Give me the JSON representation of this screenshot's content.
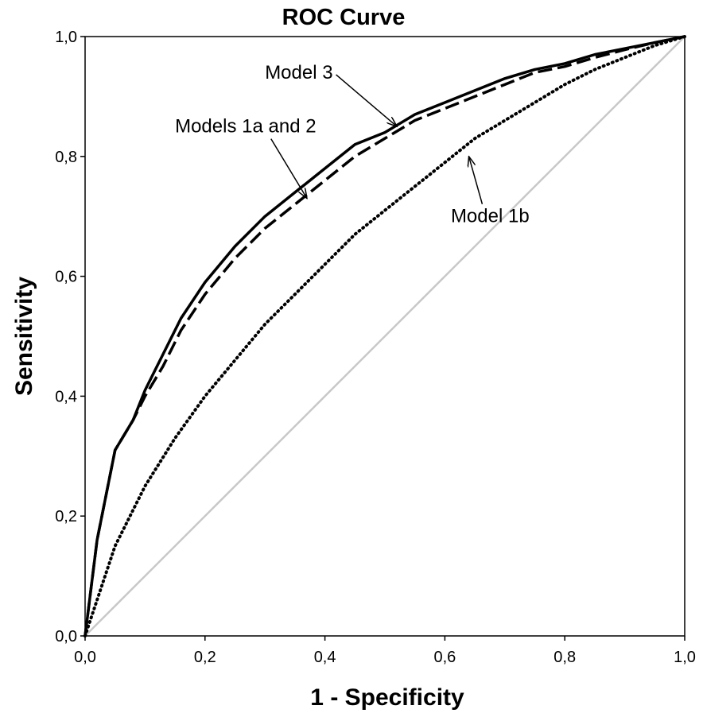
{
  "chart_data": {
    "type": "line",
    "title": "ROC Curve",
    "xlabel": "1 - Specificity",
    "ylabel": "Sensitivity",
    "xlim": [
      0,
      1
    ],
    "ylim": [
      0,
      1
    ],
    "grid": false,
    "x_ticks": [
      "0,0",
      "0,2",
      "0,4",
      "0,6",
      "0,8",
      "1,0"
    ],
    "y_ticks": [
      "0,0",
      "0,2",
      "0,4",
      "0,6",
      "0,8",
      "1,0"
    ],
    "series": [
      {
        "name": "Model 3",
        "style": "solid",
        "color": "#000000",
        "x": [
          0,
          0.02,
          0.05,
          0.08,
          0.1,
          0.13,
          0.16,
          0.2,
          0.25,
          0.3,
          0.35,
          0.4,
          0.45,
          0.5,
          0.55,
          0.6,
          0.65,
          0.7,
          0.75,
          0.8,
          0.85,
          0.9,
          0.95,
          1.0
        ],
        "y": [
          0,
          0.16,
          0.31,
          0.36,
          0.41,
          0.47,
          0.53,
          0.59,
          0.65,
          0.7,
          0.74,
          0.78,
          0.82,
          0.84,
          0.87,
          0.89,
          0.91,
          0.93,
          0.945,
          0.955,
          0.97,
          0.98,
          0.99,
          1.0
        ]
      },
      {
        "name": "Models 1a and 2",
        "style": "dashed",
        "color": "#000000",
        "x": [
          0,
          0.02,
          0.05,
          0.08,
          0.1,
          0.13,
          0.16,
          0.2,
          0.25,
          0.3,
          0.35,
          0.4,
          0.45,
          0.5,
          0.55,
          0.6,
          0.65,
          0.7,
          0.75,
          0.8,
          0.85,
          0.9,
          0.95,
          1.0
        ],
        "y": [
          0,
          0.16,
          0.31,
          0.36,
          0.4,
          0.45,
          0.51,
          0.57,
          0.63,
          0.68,
          0.72,
          0.76,
          0.8,
          0.83,
          0.86,
          0.88,
          0.9,
          0.92,
          0.94,
          0.95,
          0.965,
          0.978,
          0.99,
          1.0
        ]
      },
      {
        "name": "Model 1b",
        "style": "dotted",
        "color": "#000000",
        "x": [
          0,
          0.05,
          0.1,
          0.15,
          0.2,
          0.25,
          0.3,
          0.35,
          0.4,
          0.45,
          0.5,
          0.55,
          0.6,
          0.65,
          0.7,
          0.75,
          0.8,
          0.85,
          0.9,
          0.95,
          1.0
        ],
        "y": [
          0,
          0.15,
          0.25,
          0.33,
          0.4,
          0.46,
          0.52,
          0.57,
          0.62,
          0.67,
          0.71,
          0.75,
          0.79,
          0.83,
          0.86,
          0.89,
          0.92,
          0.945,
          0.965,
          0.985,
          1.0
        ]
      },
      {
        "name": "Reference line",
        "style": "solid",
        "color": "#c8c8c8",
        "x": [
          0,
          1
        ],
        "y": [
          0,
          1
        ]
      }
    ],
    "annotations": [
      {
        "text": "Model 3",
        "text_at": [
          0.3,
          0.93
        ],
        "arrow_to": [
          0.52,
          0.85
        ]
      },
      {
        "text": "Models 1a and 2",
        "text_at": [
          0.15,
          0.84
        ],
        "arrow_to": [
          0.37,
          0.73
        ]
      },
      {
        "text": "Model 1b",
        "text_at": [
          0.61,
          0.69
        ],
        "arrow_to": [
          0.64,
          0.8
        ]
      }
    ]
  }
}
